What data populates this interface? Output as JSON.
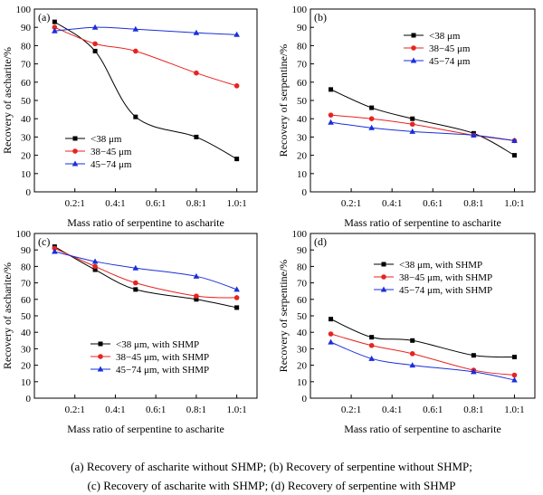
{
  "captions": {
    "line1": "(a) Recovery of ascharite without SHMP; (b) Recovery  of serpentine without SHMP;",
    "line2": "(c) Recovery of ascharite with SHMP; (d) Recovery of serpentine with SHMP"
  },
  "series_colors": [
    "#000000",
    "#e8231f",
    "#1a2edb"
  ],
  "chart_data": [
    {
      "type": "line",
      "panel_label": "(a)",
      "xlabel": "Mass ratio of serpentine to ascharite",
      "ylabel": "Recovery of ascharite/%",
      "categories": [
        "0.2:1",
        "0.4:1",
        "0.6:1",
        "0.8:1",
        "1.0:1"
      ],
      "x": [
        0.1,
        0.3,
        0.5,
        0.8,
        1.0
      ],
      "xlim": [
        0,
        1.1
      ],
      "ylim": [
        0,
        100
      ],
      "yticks": [
        0,
        10,
        20,
        30,
        40,
        50,
        60,
        70,
        80,
        90,
        100
      ],
      "legend_position": "lower-left",
      "series": [
        {
          "name": "<38 μm",
          "marker": "square",
          "values": [
            93,
            77,
            41,
            30,
            18
          ]
        },
        {
          "name": "38−45 μm",
          "marker": "circle",
          "values": [
            90,
            81,
            77,
            65,
            58
          ]
        },
        {
          "name": "45−74 μm",
          "marker": "triangle",
          "values": [
            88,
            90,
            89,
            87,
            86
          ]
        }
      ]
    },
    {
      "type": "line",
      "panel_label": "(b)",
      "xlabel": "Mass ratio of serpentine to ascharite",
      "ylabel": "Recovery of serpentine/%",
      "categories": [
        "0.2:1",
        "0.4:1",
        "0.6:1",
        "0.8:1",
        "1.0:1"
      ],
      "x": [
        0.1,
        0.3,
        0.5,
        0.8,
        1.0
      ],
      "xlim": [
        0,
        1.1
      ],
      "ylim": [
        0,
        100
      ],
      "yticks": [
        0,
        10,
        20,
        30,
        40,
        50,
        60,
        70,
        80,
        90,
        100
      ],
      "legend_position": "upper-middle",
      "series": [
        {
          "name": "<38 μm",
          "marker": "square",
          "values": [
            56,
            46,
            40,
            32,
            20
          ]
        },
        {
          "name": "38−45 μm",
          "marker": "circle",
          "values": [
            42,
            40,
            37,
            31,
            28
          ]
        },
        {
          "name": "45−74 μm",
          "marker": "triangle",
          "values": [
            38,
            35,
            33,
            31,
            28
          ]
        }
      ]
    },
    {
      "type": "line",
      "panel_label": "(c)",
      "xlabel": "Mass ratio of serpentine to ascharite",
      "ylabel": "Recovery of ascharite/%",
      "categories": [
        "0.2:1",
        "0.4:1",
        "0.6:1",
        "0.8:1",
        "1.0:1"
      ],
      "x": [
        0.1,
        0.3,
        0.5,
        0.8,
        1.0
      ],
      "xlim": [
        0,
        1.1
      ],
      "ylim": [
        0,
        100
      ],
      "yticks": [
        0,
        10,
        20,
        30,
        40,
        50,
        60,
        70,
        80,
        90,
        100
      ],
      "legend_position": "lower-middle",
      "series": [
        {
          "name": "<38 μm, with SHMP",
          "marker": "square",
          "values": [
            92,
            78,
            66,
            60,
            55
          ]
        },
        {
          "name": "38−45 μm, with SHMP",
          "marker": "circle",
          "values": [
            91,
            80,
            70,
            62,
            61
          ]
        },
        {
          "name": "45−74 μm, with SHMP",
          "marker": "triangle",
          "values": [
            89,
            83,
            79,
            74,
            66
          ]
        }
      ]
    },
    {
      "type": "line",
      "panel_label": "(d)",
      "xlabel": "Mass ratio of serpentine to ascharite",
      "ylabel": "Recovery of serpentine/%",
      "categories": [
        "0.2:1",
        "0.4:1",
        "0.6:1",
        "0.8:1",
        "1.0:1"
      ],
      "x": [
        0.1,
        0.3,
        0.5,
        0.8,
        1.0
      ],
      "xlim": [
        0,
        1.1
      ],
      "ylim": [
        0,
        100
      ],
      "yticks": [
        0,
        10,
        20,
        30,
        40,
        50,
        60,
        70,
        80,
        90,
        100
      ],
      "legend_position": "upper-middle",
      "series": [
        {
          "name": "<38 μm, with SHMP",
          "marker": "square",
          "values": [
            48,
            37,
            35,
            26,
            25
          ]
        },
        {
          "name": "38−45 μm, with SHMP",
          "marker": "circle",
          "values": [
            39,
            32,
            27,
            17,
            14
          ]
        },
        {
          "name": "45−74 μm, with SHMP",
          "marker": "triangle",
          "values": [
            34,
            24,
            20,
            16,
            11
          ]
        }
      ]
    }
  ]
}
